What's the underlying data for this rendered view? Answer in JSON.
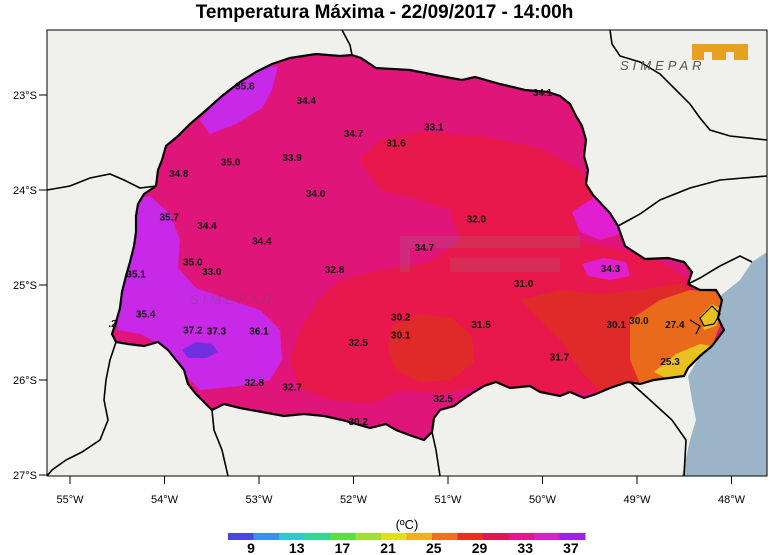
{
  "title": "Temperatura Máxima - 22/09/2017 - 14:00h",
  "brand": "SIMEPAR",
  "colors": {
    "land": "#f0f0ec",
    "ocean": "#9cb4c8",
    "state_base": "#e0157a",
    "hot_core": "#e8184c",
    "warm": "#e02a2a",
    "orange": "#e86a1a",
    "yellow": "#e8c020",
    "magenta": "#e020d0",
    "violet": "#c828e8",
    "purple": "#7030e0"
  },
  "axes": {
    "lon_labels": [
      "55°W",
      "54°W",
      "53°W",
      "52°W",
      "51°W",
      "50°W",
      "49°W",
      "48°W"
    ],
    "lat_labels": [
      "23°S",
      "24°S",
      "25°S",
      "26°S",
      "27°S"
    ]
  },
  "colorbar": {
    "unit": "(ºC)",
    "tick_labels": [
      "9",
      "13",
      "17",
      "21",
      "25",
      "29",
      "33",
      "37"
    ],
    "colors": [
      "#4848e0",
      "#3890f0",
      "#30c8d0",
      "#30d890",
      "#58e040",
      "#a0e030",
      "#e0e020",
      "#f0b020",
      "#f07020",
      "#e83020",
      "#e01850",
      "#e01890",
      "#d820c8",
      "#a020e8"
    ]
  },
  "stations": [
    {
      "label": "35.8",
      "lon": -53.15,
      "lat": -22.9
    },
    {
      "label": "34.4",
      "lon": -52.5,
      "lat": -23.05
    },
    {
      "label": "34.7",
      "lon": -52.0,
      "lat": -23.4
    },
    {
      "label": "33.1",
      "lon": -51.15,
      "lat": -23.33
    },
    {
      "label": "34.1",
      "lon": -50.0,
      "lat": -22.97
    },
    {
      "label": "31.6",
      "lon": -51.55,
      "lat": -23.5
    },
    {
      "label": "35.0",
      "lon": -53.3,
      "lat": -23.7
    },
    {
      "label": "33.9",
      "lon": -52.65,
      "lat": -23.65
    },
    {
      "label": "34.8",
      "lon": -53.85,
      "lat": -23.82
    },
    {
      "label": "34.0",
      "lon": -52.4,
      "lat": -24.03
    },
    {
      "label": "32.0",
      "lon": -50.7,
      "lat": -24.3
    },
    {
      "label": "35.7",
      "lon": -53.95,
      "lat": -24.28
    },
    {
      "label": "34.4",
      "lon": -53.55,
      "lat": -24.37
    },
    {
      "label": "34.4",
      "lon": -52.97,
      "lat": -24.53
    },
    {
      "label": "34.7",
      "lon": -51.25,
      "lat": -24.6
    },
    {
      "label": "35.0",
      "lon": -53.7,
      "lat": -24.75
    },
    {
      "label": "33.0",
      "lon": -53.5,
      "lat": -24.85
    },
    {
      "label": "32.8",
      "lon": -52.2,
      "lat": -24.83
    },
    {
      "label": "34.3",
      "lon": -49.28,
      "lat": -24.82
    },
    {
      "label": "35.1",
      "lon": -54.3,
      "lat": -24.88
    },
    {
      "label": "31.0",
      "lon": -50.2,
      "lat": -24.98
    },
    {
      "label": "35.4",
      "lon": -54.2,
      "lat": -25.3
    },
    {
      "label": "37.2",
      "lon": -53.7,
      "lat": -25.47
    },
    {
      "label": "37.3",
      "lon": -53.45,
      "lat": -25.48
    },
    {
      "label": "36.1",
      "lon": -53.0,
      "lat": -25.48
    },
    {
      "label": "30.2",
      "lon": -51.5,
      "lat": -25.33
    },
    {
      "label": "30.1",
      "lon": -51.5,
      "lat": -25.52
    },
    {
      "label": "31.5",
      "lon": -50.65,
      "lat": -25.41
    },
    {
      "label": "30.1",
      "lon": -49.22,
      "lat": -25.41
    },
    {
      "label": "30.0",
      "lon": -48.98,
      "lat": -25.37
    },
    {
      "label": "27.4",
      "lon": -48.6,
      "lat": -25.41
    },
    {
      "label": "32.5",
      "lon": -51.95,
      "lat": -25.6
    },
    {
      "label": "31.7",
      "lon": -49.82,
      "lat": -25.75
    },
    {
      "label": "25.3",
      "lon": -48.65,
      "lat": -25.8
    },
    {
      "label": "32.8",
      "lon": -53.05,
      "lat": -26.02
    },
    {
      "label": "32.7",
      "lon": -52.65,
      "lat": -26.07
    },
    {
      "label": "32.5",
      "lon": -51.05,
      "lat": -26.19
    },
    {
      "label": "30.2",
      "lon": -51.95,
      "lat": -26.43
    },
    {
      "label": ".2",
      "lon": -54.55,
      "lat": -25.4
    }
  ]
}
